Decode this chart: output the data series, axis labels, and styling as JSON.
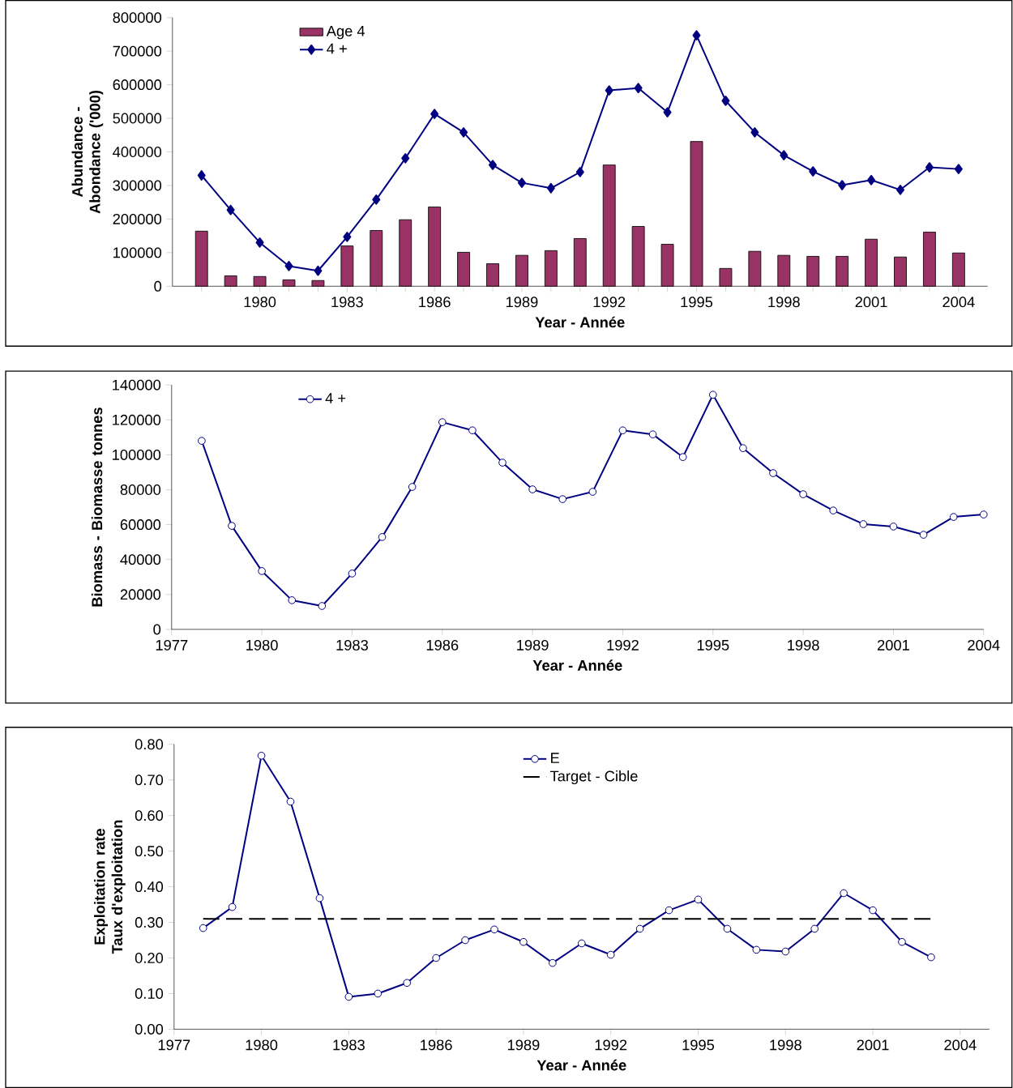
{
  "chart_data": [
    {
      "type": "bar",
      "xlabel": "Year - Année",
      "ylabel": "Abundance - Abondance ('000)",
      "categories": [
        null,
        null,
        "1980",
        null,
        null,
        "1983",
        null,
        null,
        "1986",
        null,
        null,
        "1989",
        null,
        null,
        "1992",
        null,
        null,
        "1995",
        null,
        null,
        "1998",
        null,
        null,
        "2001",
        null,
        null,
        "2004"
      ],
      "ylim": [
        0,
        800000
      ],
      "yticks": [
        0,
        100000,
        200000,
        300000,
        400000,
        500000,
        600000,
        700000,
        800000
      ],
      "legend": "top left",
      "series": [
        {
          "name": "Age 4",
          "type": "bar",
          "color": "#993366",
          "values": [
            164000,
            31000,
            29000,
            19000,
            17000,
            120000,
            166000,
            198000,
            236000,
            101000,
            67000,
            92000,
            106000,
            142000,
            361000,
            178000,
            125000,
            431000,
            53000,
            104000,
            92000,
            89000,
            89000,
            140000,
            87000,
            161000,
            99000
          ]
        },
        {
          "name": "4 +",
          "type": "line",
          "marker": "diamond",
          "color": "#000080",
          "values": [
            330000,
            227000,
            130000,
            60000,
            46000,
            147000,
            258000,
            381000,
            513000,
            458000,
            361000,
            308000,
            292000,
            340000,
            583000,
            590000,
            518000,
            747000,
            552000,
            458000,
            390000,
            342000,
            301000,
            316000,
            287000,
            354000,
            349000
          ]
        }
      ]
    },
    {
      "type": "line",
      "xlabel": "Year - Année",
      "ylabel": "Biomass - Biomasse tonnes",
      "x": [
        1978,
        1979,
        1980,
        1981,
        1982,
        1983,
        1984,
        1985,
        1986,
        1987,
        1988,
        1989,
        1990,
        1991,
        1992,
        1993,
        1994,
        1995,
        1996,
        1997,
        1998,
        1999,
        2000,
        2001,
        2002,
        2003,
        2004
      ],
      "xlim": [
        1977,
        2004
      ],
      "xticks": [
        1977,
        1980,
        1983,
        1986,
        1989,
        1992,
        1995,
        1998,
        2001,
        2004
      ],
      "ylim": [
        0,
        140000
      ],
      "yticks": [
        0,
        20000,
        40000,
        60000,
        80000,
        100000,
        120000,
        140000
      ],
      "legend": "top left",
      "marker": "circle",
      "series": [
        {
          "name": "4 +",
          "color": "#000080",
          "values": [
            108000,
            59300,
            33400,
            16700,
            13400,
            32000,
            52900,
            81600,
            118700,
            114000,
            95500,
            80200,
            74600,
            78800,
            114000,
            111700,
            98700,
            134400,
            103800,
            89500,
            77400,
            68100,
            60300,
            58900,
            54200,
            64400,
            65800
          ]
        }
      ]
    },
    {
      "type": "line",
      "xlabel": "Year - Année",
      "ylabel": "Exploitation rate Taux d'exploitation",
      "xlim": [
        1977,
        2005
      ],
      "xticks": [
        1977,
        1980,
        1983,
        1986,
        1989,
        1992,
        1995,
        1998,
        2001,
        2004
      ],
      "ylim": [
        0,
        0.8
      ],
      "yticks": [
        {
          "value": 0,
          "label": "0.00"
        },
        {
          "value": 0.1,
          "label": "0.10"
        },
        {
          "value": 0.2,
          "label": "0.20"
        },
        {
          "value": 0.3,
          "label": "0.30"
        },
        {
          "value": 0.4,
          "label": "0.40"
        },
        {
          "value": 0.5,
          "label": "0.50"
        },
        {
          "value": 0.6,
          "label": "0.60"
        },
        {
          "value": 0.7,
          "label": "0.70"
        },
        {
          "value": 0.8,
          "label": "0.80"
        }
      ],
      "legend": "top",
      "series": [
        {
          "name": "E",
          "color": "#000080",
          "marker": "circle",
          "x": [
            1978,
            1979,
            1980,
            1981,
            1982,
            1983,
            1984,
            1985,
            1986,
            1987,
            1988,
            1989,
            1990,
            1991,
            1992,
            1993,
            1994,
            1995,
            1996,
            1997,
            1998,
            1999,
            2000,
            2001,
            2002,
            2003
          ],
          "values": [
            0.284,
            0.343,
            0.768,
            0.639,
            0.368,
            0.091,
            0.1,
            0.13,
            0.2,
            0.25,
            0.28,
            0.245,
            0.186,
            0.241,
            0.209,
            0.282,
            0.334,
            0.364,
            0.282,
            0.223,
            0.218,
            0.282,
            0.382,
            0.334,
            0.245,
            0.202
          ]
        },
        {
          "name": "Target - Cible",
          "color": "#000000",
          "line_style": "dashed",
          "marker": "none",
          "x": [
            1978,
            2003
          ],
          "values": [
            0.31,
            0.31
          ]
        }
      ]
    }
  ]
}
